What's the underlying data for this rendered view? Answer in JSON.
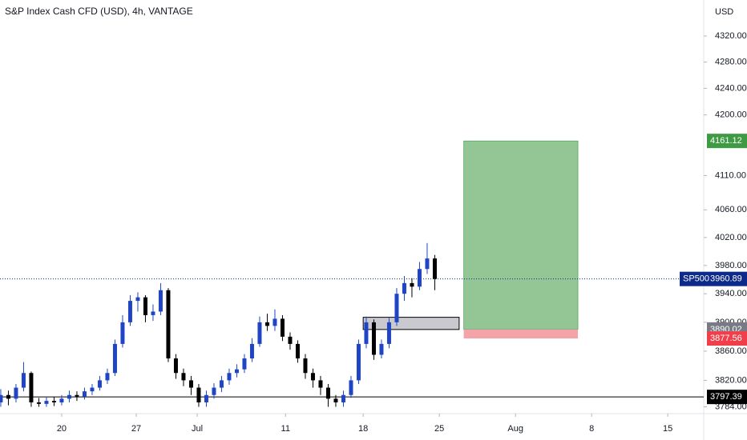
{
  "chart_data": {
    "type": "candlestick",
    "title": "S&P Index Cash CFD (USD), 4h, VANTAGE",
    "y_axis_label": "USD",
    "log_scale": true,
    "up_color": "#1f45c4",
    "down_color": "#000000",
    "x": [
      -4,
      -3.5,
      -3,
      -2.5,
      -2,
      -1.5,
      -1,
      -0.5,
      0,
      0.5,
      1,
      1.5,
      2,
      2.5,
      3,
      3.5,
      4,
      4.5,
      5,
      5.5,
      6,
      6.5,
      7,
      7.5,
      8,
      8.5,
      9,
      9.5,
      10,
      10.5,
      11,
      11.5,
      12,
      12.5,
      13,
      13.5,
      14,
      14.5,
      15,
      15.5,
      16,
      16.5,
      17,
      17.5,
      18,
      18.5,
      19,
      19.5,
      20,
      20.5,
      21,
      21.5,
      22,
      22.5,
      23,
      23.5,
      24,
      24.5
    ],
    "open": [
      3790,
      3800,
      3795,
      3810,
      3830,
      3790,
      3788,
      3792,
      3790,
      3795,
      3800,
      3798,
      3805,
      3810,
      3820,
      3830,
      3870,
      3900,
      3930,
      3935,
      3910,
      3915,
      3945,
      3850,
      3830,
      3820,
      3810,
      3790,
      3800,
      3810,
      3820,
      3830,
      3835,
      3850,
      3870,
      3900,
      3895,
      3905,
      3880,
      3870,
      3850,
      3830,
      3820,
      3810,
      3795,
      3790,
      3800,
      3820,
      3870,
      3900,
      3855,
      3870,
      3900,
      3940,
      3955,
      3950,
      3975,
      3990
    ],
    "high": [
      3808,
      3806,
      3815,
      3845,
      3832,
      3796,
      3798,
      3797,
      3800,
      3806,
      3805,
      3810,
      3815,
      3826,
      3836,
      3876,
      3910,
      3938,
      3942,
      3938,
      3925,
      3955,
      3948,
      3856,
      3836,
      3826,
      3815,
      3806,
      3816,
      3826,
      3836,
      3842,
      3856,
      3878,
      3908,
      3912,
      3918,
      3910,
      3886,
      3875,
      3856,
      3836,
      3826,
      3815,
      3800,
      3806,
      3826,
      3876,
      3908,
      3904,
      3876,
      3906,
      3948,
      3965,
      3962,
      3985,
      4012,
      3995
    ],
    "low": [
      3784,
      3786,
      3790,
      3805,
      3784,
      3784,
      3784,
      3785,
      3786,
      3790,
      3792,
      3794,
      3800,
      3806,
      3815,
      3826,
      3865,
      3895,
      3915,
      3900,
      3902,
      3910,
      3845,
      3822,
      3812,
      3800,
      3784,
      3784,
      3795,
      3804,
      3814,
      3824,
      3830,
      3845,
      3866,
      3888,
      3888,
      3874,
      3862,
      3844,
      3822,
      3810,
      3800,
      3784,
      3784,
      3784,
      3796,
      3815,
      3864,
      3848,
      3850,
      3864,
      3895,
      3930,
      3935,
      3945,
      3968,
      3945
    ],
    "close": [
      3800,
      3795,
      3810,
      3830,
      3790,
      3788,
      3792,
      3790,
      3795,
      3800,
      3798,
      3805,
      3810,
      3820,
      3830,
      3870,
      3900,
      3930,
      3935,
      3910,
      3915,
      3945,
      3850,
      3830,
      3820,
      3810,
      3790,
      3800,
      3810,
      3820,
      3830,
      3835,
      3850,
      3870,
      3900,
      3895,
      3905,
      3880,
      3870,
      3850,
      3830,
      3820,
      3810,
      3795,
      3790,
      3800,
      3820,
      3870,
      3900,
      3855,
      3870,
      3900,
      3940,
      3955,
      3950,
      3975,
      3990,
      3960.89
    ],
    "xlim": [
      -4.05,
      42.16
    ],
    "xticks": [
      {
        "value": 0,
        "label": "20"
      },
      {
        "value": 4.9,
        "label": "27"
      },
      {
        "value": 8.9,
        "label": "Jul"
      },
      {
        "value": 14.7,
        "label": "11"
      },
      {
        "value": 19.8,
        "label": "18"
      },
      {
        "value": 24.8,
        "label": "25"
      },
      {
        "value": 29.8,
        "label": "Aug"
      },
      {
        "value": 34.8,
        "label": "8"
      },
      {
        "value": 39.8,
        "label": "15"
      }
    ],
    "ylim": [
      3777,
      4376
    ],
    "yticks": [
      {
        "value": 4320,
        "label": "4320.00"
      },
      {
        "value": 4280,
        "label": "4280.00"
      },
      {
        "value": 4240,
        "label": "4240.00"
      },
      {
        "value": 4200,
        "label": "4200.00"
      },
      {
        "value": 4110,
        "label": "4110.00"
      },
      {
        "value": 4060,
        "label": "4060.00"
      },
      {
        "value": 4020,
        "label": "4020.00"
      },
      {
        "value": 3980,
        "label": "3980.00"
      },
      {
        "value": 3940,
        "label": "3940.00"
      },
      {
        "value": 3900,
        "label": "3900.00"
      },
      {
        "value": 3860,
        "label": "3860.00"
      },
      {
        "value": 3820,
        "label": "3820.00"
      },
      {
        "value": 3784,
        "label": "3784.00"
      }
    ],
    "last_price": {
      "name": "SP500",
      "value": 3960.89,
      "color": "#0d2a8a"
    },
    "level": {
      "value": 3797.39,
      "color": "#000000"
    },
    "zone": {
      "low": 3890,
      "high": 3907,
      "x": [
        19.8,
        26.1
      ],
      "color": "#c9c9cf"
    },
    "position": {
      "target": 4161.12,
      "entry": 3890.02,
      "stop": 3877.56,
      "x": [
        26.4,
        33.9
      ],
      "profit_color": "#94c595",
      "loss_color": "#f4a3a8",
      "target_color": "#3e9b44",
      "entry_color": "#787b86",
      "stop_color": "#f03e4a"
    }
  }
}
